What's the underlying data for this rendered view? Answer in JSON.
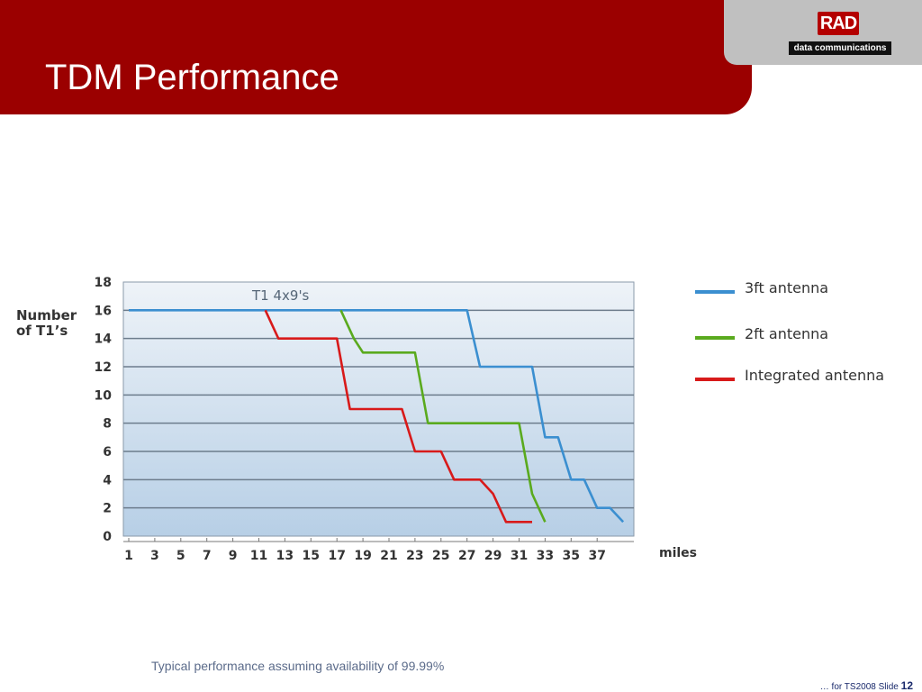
{
  "slide": {
    "title": "TDM Performance",
    "caption": "Typical performance assuming availability of 99.99%",
    "footer_text": "… for TS2008  Slide ",
    "slide_number": "12"
  },
  "logo": {
    "mark": "RAD",
    "subtitle": "data communications"
  },
  "chart_data": {
    "type": "line",
    "title": "T1 4x9's",
    "ylabel": "Number of T1’s",
    "xlabel": "miles",
    "ylim": [
      0,
      18
    ],
    "xlim": [
      1,
      39
    ],
    "yticks": [
      0,
      2,
      4,
      6,
      8,
      10,
      12,
      14,
      16,
      18
    ],
    "xticks": [
      1,
      3,
      5,
      7,
      9,
      11,
      13,
      15,
      17,
      19,
      21,
      23,
      25,
      27,
      29,
      31,
      33,
      35,
      37
    ],
    "grid": true,
    "legend_position": "right",
    "series": [
      {
        "name": "3ft antenna",
        "color": "#3b8fd0",
        "points": [
          [
            1,
            16
          ],
          [
            27,
            16
          ],
          [
            28,
            12
          ],
          [
            32,
            12
          ],
          [
            33,
            7
          ],
          [
            34,
            7
          ],
          [
            35,
            4
          ],
          [
            36,
            4
          ],
          [
            37,
            2
          ],
          [
            38,
            2
          ],
          [
            39,
            1
          ]
        ]
      },
      {
        "name": "2ft antenna",
        "color": "#5aaa1e",
        "points": [
          [
            17.3,
            16
          ],
          [
            18.3,
            14
          ],
          [
            19,
            13
          ],
          [
            23,
            13
          ],
          [
            24,
            8
          ],
          [
            31,
            8
          ],
          [
            32,
            3
          ],
          [
            33,
            1
          ]
        ]
      },
      {
        "name": "Integrated antenna",
        "color": "#d81a1a",
        "points": [
          [
            11.5,
            16
          ],
          [
            12.5,
            14
          ],
          [
            17,
            14
          ],
          [
            18,
            9
          ],
          [
            22,
            9
          ],
          [
            23,
            6
          ],
          [
            25,
            6
          ],
          [
            26,
            4
          ],
          [
            28,
            4
          ],
          [
            29,
            3
          ],
          [
            30,
            1
          ],
          [
            32,
            1
          ]
        ]
      }
    ]
  }
}
